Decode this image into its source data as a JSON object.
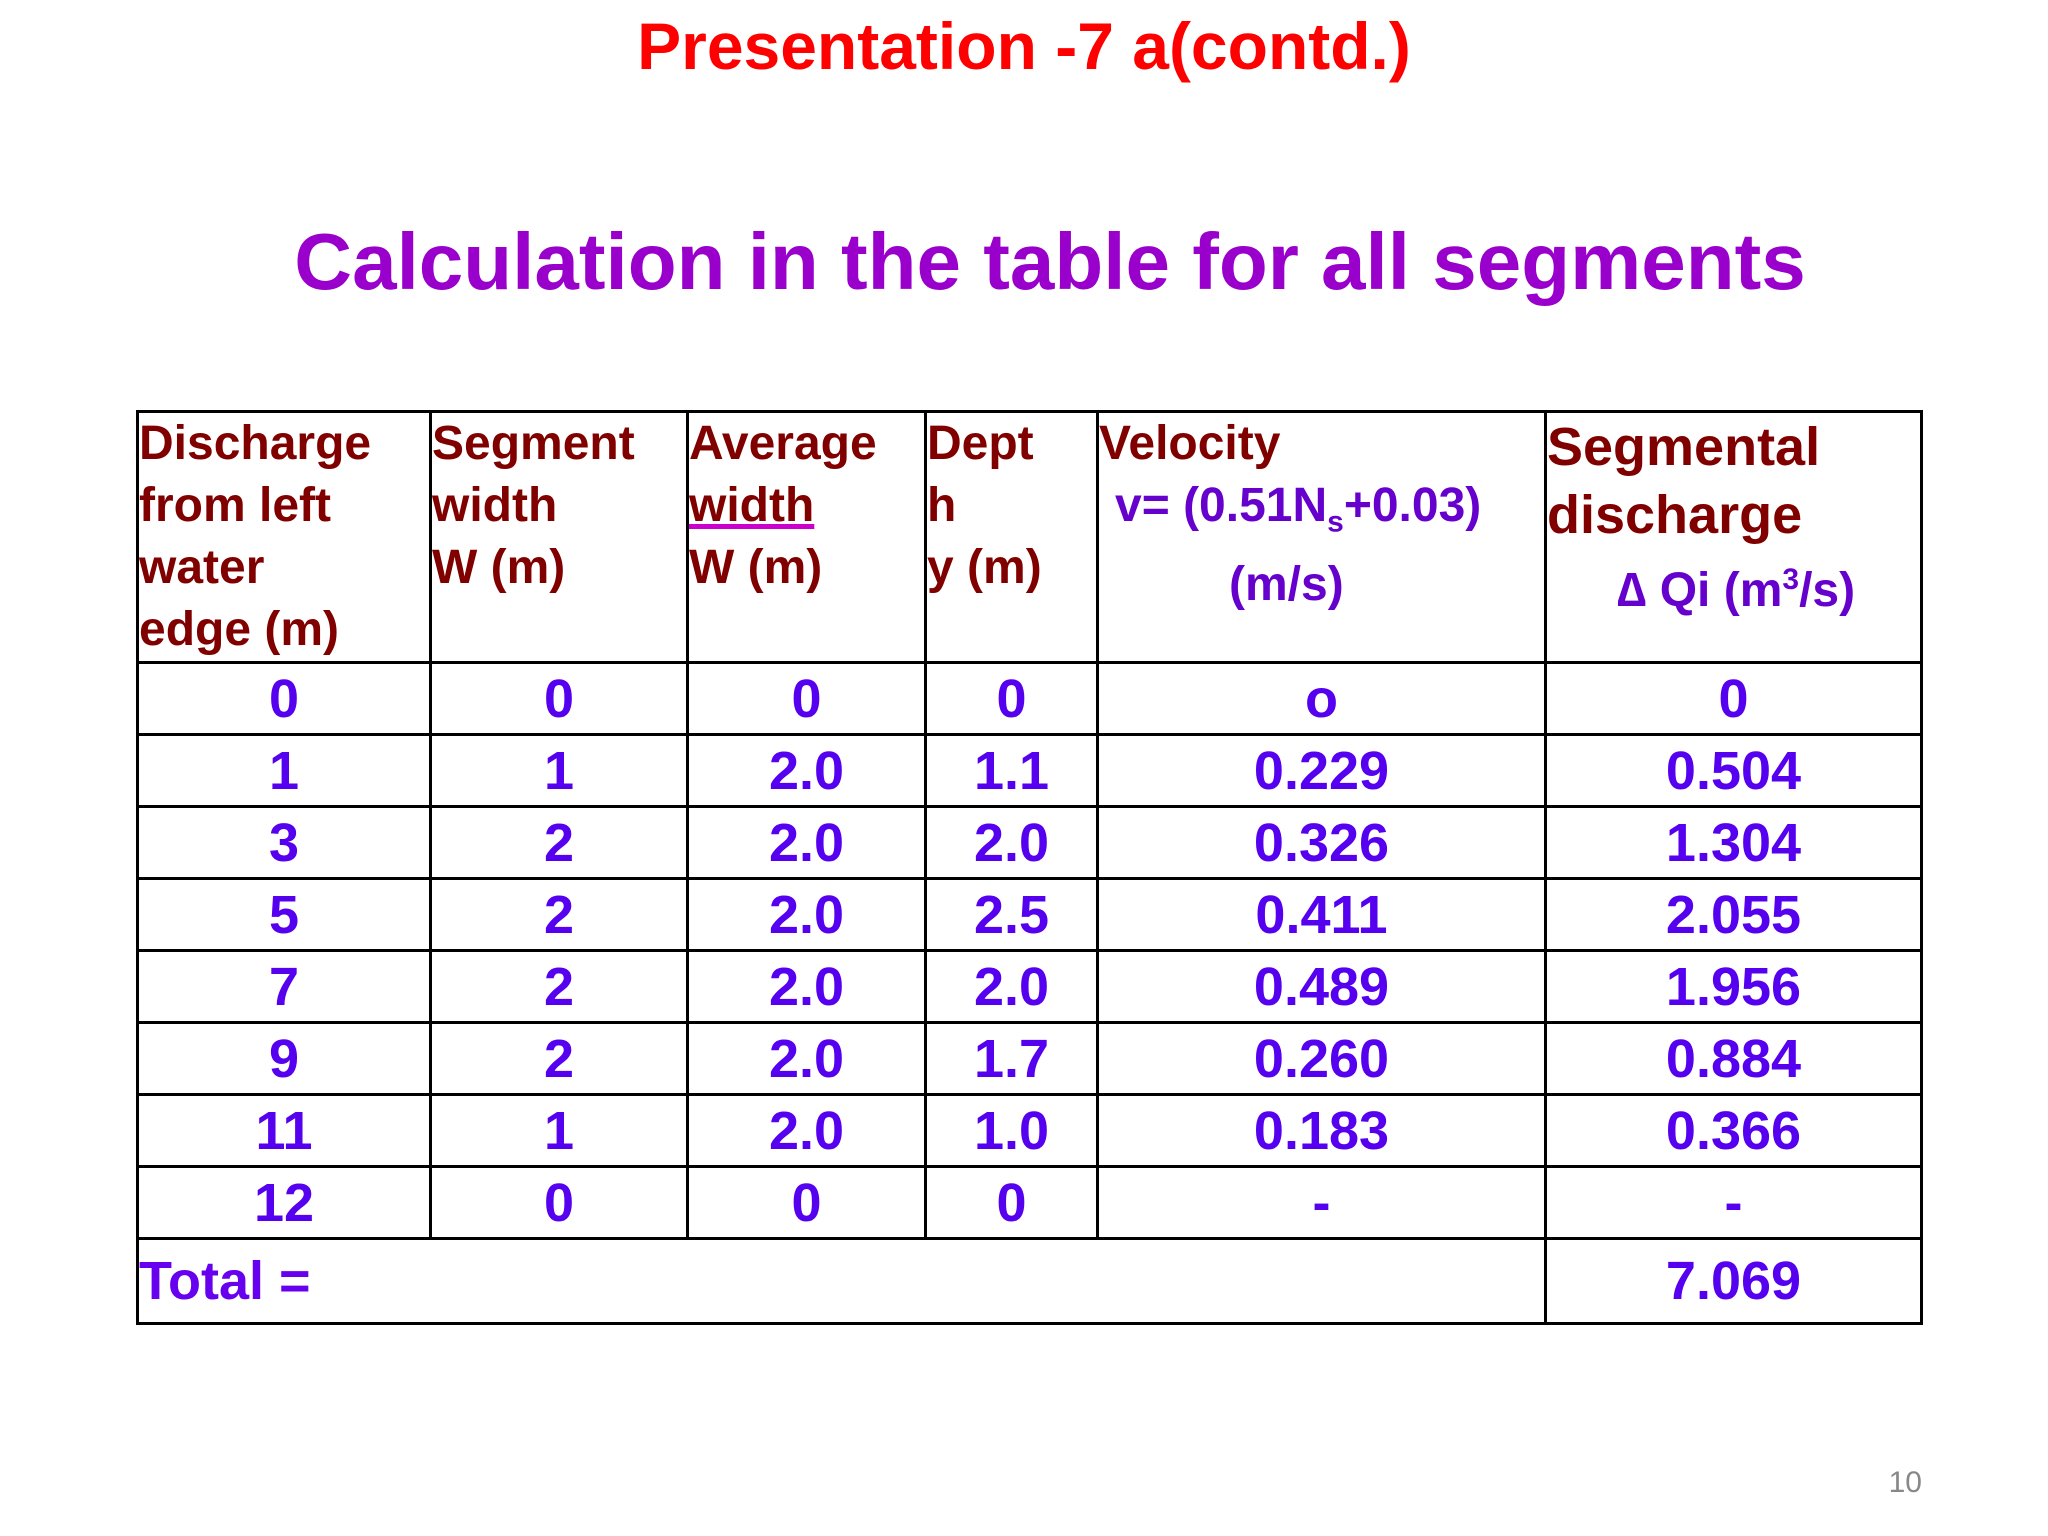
{
  "slide": {
    "title": "Presentation -7 a(contd.)",
    "subtitle": "Calculation in the table for all segments",
    "page_number": "10"
  },
  "table": {
    "headers": {
      "c1": [
        "Discharge",
        "from left",
        "water",
        "edge (m)"
      ],
      "c2": [
        "Segment",
        "width",
        "W (m)"
      ],
      "c3": [
        "Average",
        "width",
        "W  (m)"
      ],
      "c4": [
        "Dept",
        "h",
        "y (m)"
      ],
      "c5": {
        "l1": "Velocity",
        "l2a": "v= (0.51N",
        "l2sub": "s",
        "l2b": "+0.03)",
        "l3": "(m/s)"
      },
      "c6": {
        "l1": "Segmental",
        "l2": "discharge",
        "l3a": "∆ Qi  (m",
        "l3sup": "3",
        "l3b": "/s)"
      }
    },
    "rows": [
      [
        "0",
        "0",
        "0",
        "0",
        "o",
        "0"
      ],
      [
        "1",
        "1",
        "2.0",
        "1.1",
        "0.229",
        "0.504"
      ],
      [
        "3",
        "2",
        "2.0",
        "2.0",
        "0.326",
        "1.304"
      ],
      [
        "5",
        "2",
        "2.0",
        "2.5",
        "0.411",
        "2.055"
      ],
      [
        "7",
        "2",
        "2.0",
        "2.0",
        "0.489",
        "1.956"
      ],
      [
        "9",
        "2",
        "2.0",
        "1.7",
        "0.260",
        "0.884"
      ],
      [
        "11",
        "1",
        "2.0",
        "1.0",
        "0.183",
        "0.366"
      ],
      [
        "12",
        "0",
        "0",
        "0",
        "-",
        "-"
      ]
    ],
    "total_label": "Total =",
    "total_value": "7.069"
  },
  "colors": {
    "title": "#ff0000",
    "subtitle": "#9900cc",
    "header_text": "#800000",
    "cell_text": "#5500ee",
    "border": "#000000"
  }
}
